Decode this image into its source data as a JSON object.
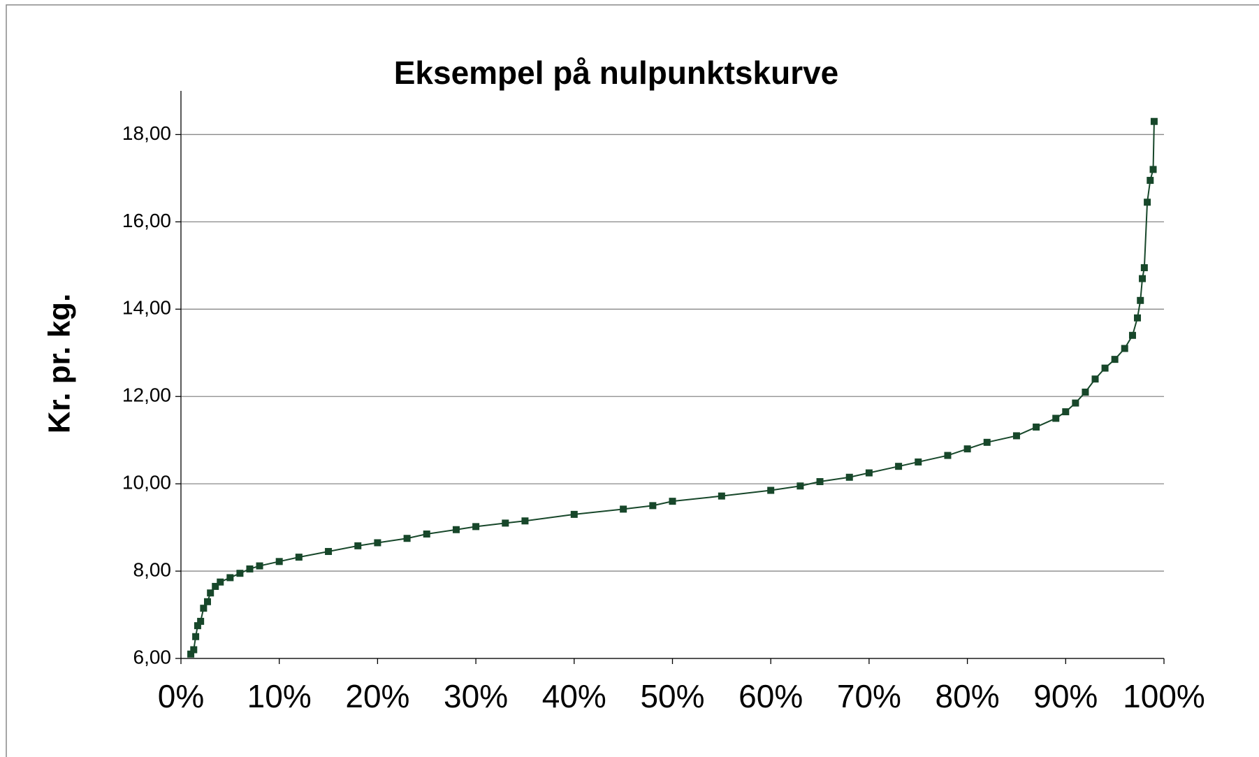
{
  "chart_data": {
    "type": "line",
    "title": "Eksempel på nulpunktskurve",
    "y_label": "Kr. pr. kg.",
    "series": [
      {
        "name": "Kr. pr. kg.",
        "color": "#17472a",
        "x": [
          1,
          1.3,
          1.5,
          1.7,
          2,
          2.3,
          2.7,
          3,
          3.5,
          4,
          5,
          6,
          7,
          8,
          10,
          12,
          15,
          18,
          20,
          23,
          25,
          28,
          30,
          33,
          35,
          40,
          45,
          48,
          50,
          55,
          60,
          63,
          65,
          68,
          70,
          73,
          75,
          78,
          80,
          82,
          85,
          87,
          89,
          90,
          91,
          92,
          93,
          94,
          95,
          96,
          96.8,
          97.3,
          97.6,
          97.8,
          98,
          98.3,
          98.6,
          98.9,
          99
        ],
        "values": [
          6.1,
          6.2,
          6.5,
          6.75,
          6.85,
          7.15,
          7.3,
          7.5,
          7.65,
          7.75,
          7.85,
          7.95,
          8.05,
          8.12,
          8.22,
          8.32,
          8.45,
          8.58,
          8.65,
          8.75,
          8.85,
          8.95,
          9.02,
          9.1,
          9.15,
          9.3,
          9.42,
          9.5,
          9.6,
          9.72,
          9.85,
          9.95,
          10.05,
          10.15,
          10.25,
          10.4,
          10.5,
          10.65,
          10.8,
          10.95,
          11.1,
          11.3,
          11.5,
          11.65,
          11.85,
          12.1,
          12.4,
          12.65,
          12.85,
          13.1,
          13.4,
          13.8,
          14.2,
          14.7,
          14.95,
          16.45,
          16.95,
          17.2,
          18.3
        ]
      }
    ],
    "xlim": [
      0,
      100
    ],
    "xticks": [
      {
        "value": 0,
        "label": "0%"
      },
      {
        "value": 10,
        "label": "10%"
      },
      {
        "value": 20,
        "label": "20%"
      },
      {
        "value": 30,
        "label": "30%"
      },
      {
        "value": 40,
        "label": "40%"
      },
      {
        "value": 50,
        "label": "50%"
      },
      {
        "value": 60,
        "label": "60%"
      },
      {
        "value": 70,
        "label": "70%"
      },
      {
        "value": 80,
        "label": "80%"
      },
      {
        "value": 90,
        "label": "90%"
      },
      {
        "value": 100,
        "label": "100%"
      }
    ],
    "ylim": [
      6,
      19
    ],
    "yticks": [
      {
        "value": 6,
        "label": "6,00"
      },
      {
        "value": 8,
        "label": "8,00"
      },
      {
        "value": 10,
        "label": "10,00"
      },
      {
        "value": 12,
        "label": "12,00"
      },
      {
        "value": 14,
        "label": "14,00"
      },
      {
        "value": 16,
        "label": "16,00"
      },
      {
        "value": 18,
        "label": "18,00"
      }
    ],
    "grid": true
  }
}
